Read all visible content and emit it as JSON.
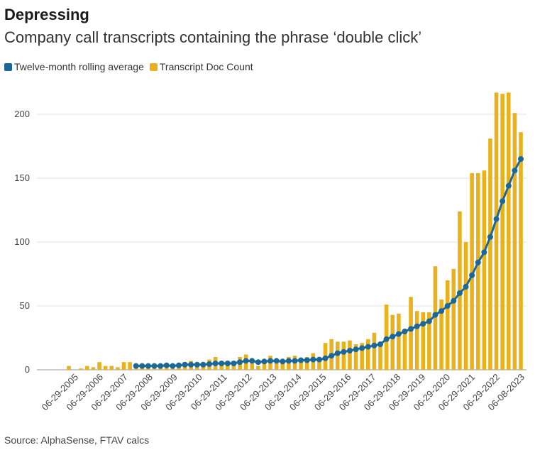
{
  "title": "Depressing",
  "subtitle": "Company call transcripts containing the phrase ‘double click’",
  "legend": {
    "items": [
      {
        "label": "Twelve-month rolling average",
        "color": "#1b6797"
      },
      {
        "label": "Transcript Doc Count",
        "color": "#e9b11c"
      }
    ]
  },
  "source": "Source: AlphaSense, FTAV calcs",
  "chart_data": {
    "type": "bar",
    "title": "Company call transcripts containing the phrase ‘double click’",
    "ylim": [
      0,
      220
    ],
    "yticks": [
      0,
      50,
      100,
      150,
      200
    ],
    "grid": true,
    "legend_position": "top-left",
    "x_tick_labels": [
      "06-29-2005",
      "06-29-2006",
      "06-29-2007",
      "06-29-2008",
      "06-29-2009",
      "06-29-2010",
      "06-29-2011",
      "06-29-2012",
      "06-29-2013",
      "06-29-2014",
      "06-29-2015",
      "06-29-2016",
      "06-29-2017",
      "06-29-2018",
      "06-29-2019",
      "06-29-2020",
      "06-29-2021",
      "06-29-2022",
      "06-08-2023"
    ],
    "series": [
      {
        "name": "Transcript Doc Count",
        "kind": "bar",
        "color": "#e9b11c",
        "values": [
          3,
          0,
          1,
          3,
          2,
          6,
          3,
          3,
          2,
          6,
          6,
          2,
          2,
          3,
          3,
          2,
          3,
          3,
          4,
          6,
          7,
          4,
          6,
          8,
          10,
          6,
          7,
          5,
          10,
          12,
          5,
          3,
          5,
          11,
          8,
          6,
          10,
          11,
          9,
          10,
          13,
          7,
          21,
          24,
          22,
          22,
          23,
          20,
          21,
          24,
          29,
          21,
          51,
          43,
          44,
          32,
          57,
          46,
          45,
          45,
          81,
          55,
          70,
          79,
          124,
          100,
          154,
          154,
          156,
          181,
          217,
          216,
          217,
          201,
          186
        ]
      },
      {
        "name": "Twelve-month rolling average",
        "kind": "line",
        "color": "#1b6797",
        "values": [
          null,
          null,
          null,
          null,
          null,
          null,
          null,
          null,
          null,
          null,
          null,
          3,
          3,
          3,
          3,
          3,
          3.5,
          3,
          3.5,
          4,
          4,
          4,
          4,
          4.5,
          5,
          5,
          5,
          5,
          6,
          7,
          7,
          6,
          6.5,
          7,
          7,
          6.5,
          7,
          7,
          7.5,
          7.5,
          8,
          8,
          9,
          11,
          13,
          14,
          15,
          16,
          17,
          18,
          19,
          20,
          24,
          26,
          28,
          30,
          32,
          34,
          36,
          38,
          43,
          46,
          50,
          54,
          60,
          65,
          74,
          84,
          92,
          104,
          118,
          132,
          144,
          156,
          165
        ]
      }
    ]
  }
}
